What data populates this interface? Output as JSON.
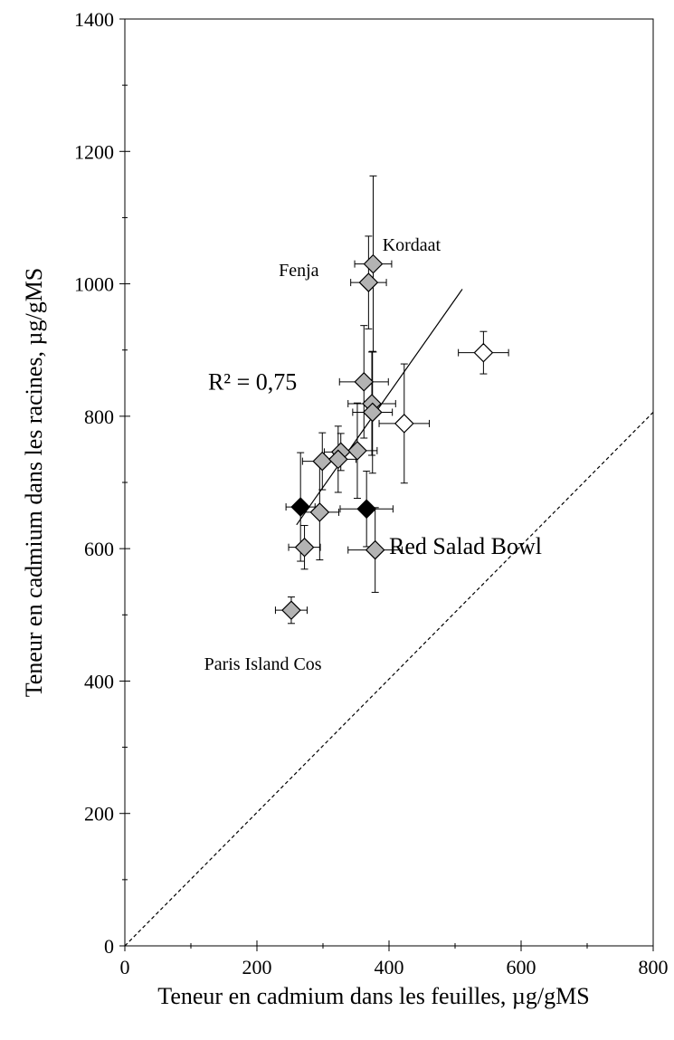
{
  "chart_data": {
    "type": "scatter",
    "title": "",
    "xlabel": "Teneur en cadmium dans les feuilles, µg/gMS",
    "ylabel": "Teneur en cadmium dans les racines, µg/gMS",
    "xlim": [
      0,
      800
    ],
    "ylim": [
      0,
      1400
    ],
    "xticks": [
      0,
      200,
      400,
      600,
      800
    ],
    "yticks": [
      0,
      200,
      400,
      600,
      800,
      1000,
      1200,
      1400
    ],
    "grid": false,
    "series": [
      {
        "marker": "diamond",
        "color": "#b3b3b3",
        "points": [
          {
            "x": 376,
            "y": 1030,
            "xerr": 28,
            "yerr": 133
          },
          {
            "x": 369,
            "y": 1002,
            "xerr": 27,
            "yerr": 70
          },
          {
            "x": 362,
            "y": 852,
            "xerr": 37,
            "yerr": 85
          },
          {
            "x": 374,
            "y": 819,
            "xerr": 36,
            "yerr": 78
          },
          {
            "x": 375,
            "y": 806,
            "xerr": 30,
            "yerr": 92
          },
          {
            "x": 352,
            "y": 748,
            "xerr": 30,
            "yerr": 72
          },
          {
            "x": 327,
            "y": 746,
            "xerr": 25,
            "yerr": 28
          },
          {
            "x": 299,
            "y": 732,
            "xerr": 30,
            "yerr": 43
          },
          {
            "x": 323,
            "y": 735,
            "xerr": 27,
            "yerr": 50
          },
          {
            "x": 295,
            "y": 655,
            "xerr": 29,
            "yerr": 72
          },
          {
            "x": 272,
            "y": 602,
            "xerr": 24,
            "yerr": 33
          },
          {
            "x": 379,
            "y": 598,
            "xerr": 41,
            "yerr": 64
          },
          {
            "x": 252,
            "y": 507,
            "xerr": 24,
            "yerr": 20
          }
        ]
      },
      {
        "marker": "diamond",
        "color": "#000000",
        "points": [
          {
            "x": 266,
            "y": 663,
            "xerr": 22,
            "yerr": 82
          },
          {
            "x": 366,
            "y": 660,
            "xerr": 40,
            "yerr": 57
          }
        ]
      },
      {
        "marker": "diamond",
        "color": "#ffffff",
        "points": [
          {
            "x": 423,
            "y": 789,
            "xerr": 38,
            "yerr": 90
          },
          {
            "x": 543,
            "y": 896,
            "xerr": 38,
            "yerr": 32
          }
        ]
      }
    ],
    "regression_line": {
      "x": [
        260,
        511
      ],
      "y": [
        636,
        992
      ]
    },
    "reference_line": {
      "x": [
        0,
        800
      ],
      "y": [
        0,
        806
      ],
      "style": "dashed"
    },
    "annotations": [
      {
        "text": "Kordaat",
        "x": 390,
        "y": 1050
      },
      {
        "text": "Fenja",
        "x": 233,
        "y": 1012
      },
      {
        "text": "Red Salad Bowl",
        "x": 400,
        "y": 592
      },
      {
        "text": "Paris Island Cos",
        "x": 120,
        "y": 417
      },
      {
        "text": "R² = 0,75",
        "x": 126,
        "y": 840
      }
    ]
  }
}
